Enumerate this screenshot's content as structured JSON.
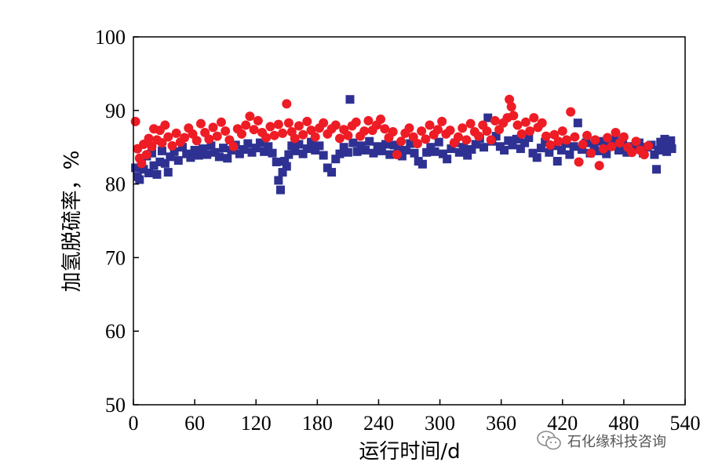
{
  "chart_data": {
    "type": "scatter",
    "xlabel": "运行时间/d",
    "ylabel": "加氢脱硫率，%",
    "xlim": [
      0,
      540
    ],
    "ylim": [
      50,
      100
    ],
    "xticks": [
      0,
      60,
      120,
      180,
      240,
      300,
      360,
      420,
      480,
      540
    ],
    "yticks": [
      50,
      60,
      70,
      80,
      90,
      100
    ],
    "grid": false,
    "legend": "none",
    "series": [
      {
        "marker": "square",
        "color": "#2e3192",
        "points": [
          [
            2,
            82.2
          ],
          [
            4,
            81.0
          ],
          [
            6,
            80.6
          ],
          [
            8,
            83.5
          ],
          [
            10,
            82.0
          ],
          [
            13,
            83.8
          ],
          [
            15,
            81.5
          ],
          [
            18,
            84.2
          ],
          [
            20,
            82.5
          ],
          [
            23,
            81.3
          ],
          [
            26,
            83.0
          ],
          [
            28,
            84.5
          ],
          [
            31,
            82.8
          ],
          [
            34,
            81.6
          ],
          [
            36,
            83.7
          ],
          [
            40,
            84.4
          ],
          [
            44,
            83.2
          ],
          [
            48,
            85.0
          ],
          [
            52,
            84.1
          ],
          [
            56,
            83.6
          ],
          [
            60,
            84.6
          ],
          [
            64,
            83.9
          ],
          [
            68,
            84.8
          ],
          [
            72,
            84.0
          ],
          [
            76,
            85.2
          ],
          [
            80,
            84.3
          ],
          [
            84,
            83.7
          ],
          [
            88,
            84.9
          ],
          [
            92,
            83.5
          ],
          [
            96,
            84.6
          ],
          [
            100,
            85.3
          ],
          [
            104,
            84.1
          ],
          [
            108,
            84.7
          ],
          [
            112,
            85.5
          ],
          [
            116,
            84.3
          ],
          [
            120,
            84.9
          ],
          [
            124,
            85.6
          ],
          [
            128,
            84.4
          ],
          [
            132,
            85.1
          ],
          [
            136,
            84.2
          ],
          [
            140,
            83.0
          ],
          [
            142,
            80.5
          ],
          [
            144,
            79.2
          ],
          [
            146,
            81.6
          ],
          [
            148,
            83.1
          ],
          [
            150,
            82.4
          ],
          [
            152,
            84.0
          ],
          [
            155,
            85.2
          ],
          [
            158,
            84.5
          ],
          [
            162,
            85.4
          ],
          [
            166,
            84.1
          ],
          [
            170,
            84.8
          ],
          [
            174,
            85.7
          ],
          [
            178,
            84.6
          ],
          [
            182,
            85.2
          ],
          [
            186,
            83.9
          ],
          [
            190,
            82.2
          ],
          [
            194,
            81.6
          ],
          [
            198,
            83.4
          ],
          [
            202,
            84.1
          ],
          [
            206,
            85.0
          ],
          [
            210,
            84.3
          ],
          [
            212,
            91.5
          ],
          [
            215,
            85.6
          ],
          [
            219,
            84.4
          ],
          [
            223,
            85.2
          ],
          [
            227,
            84.6
          ],
          [
            231,
            85.8
          ],
          [
            235,
            84.2
          ],
          [
            239,
            85.1
          ],
          [
            243,
            84.5
          ],
          [
            247,
            85.4
          ],
          [
            251,
            84.0
          ],
          [
            255,
            85.3
          ],
          [
            259,
            84.7
          ],
          [
            263,
            83.8
          ],
          [
            267,
            84.6
          ],
          [
            271,
            85.5
          ],
          [
            275,
            84.2
          ],
          [
            279,
            83.1
          ],
          [
            283,
            82.7
          ],
          [
            287,
            84.3
          ],
          [
            291,
            85.0
          ],
          [
            295,
            84.4
          ],
          [
            299,
            85.7
          ],
          [
            303,
            84.1
          ],
          [
            307,
            83.4
          ],
          [
            311,
            84.8
          ],
          [
            315,
            85.6
          ],
          [
            319,
            84.3
          ],
          [
            323,
            85.0
          ],
          [
            327,
            83.9
          ],
          [
            331,
            84.7
          ],
          [
            335,
            85.4
          ],
          [
            339,
            86.2
          ],
          [
            343,
            85.0
          ],
          [
            347,
            89.0
          ],
          [
            351,
            85.8
          ],
          [
            355,
            86.5
          ],
          [
            359,
            85.1
          ],
          [
            363,
            84.6
          ],
          [
            367,
            85.9
          ],
          [
            371,
            85.3
          ],
          [
            375,
            86.1
          ],
          [
            379,
            84.8
          ],
          [
            383,
            85.6
          ],
          [
            387,
            86.3
          ],
          [
            391,
            84.2
          ],
          [
            395,
            83.6
          ],
          [
            399,
            84.9
          ],
          [
            403,
            85.7
          ],
          [
            407,
            84.3
          ],
          [
            411,
            85.2
          ],
          [
            415,
            83.1
          ],
          [
            419,
            84.6
          ],
          [
            423,
            85.5
          ],
          [
            427,
            84.0
          ],
          [
            431,
            85.1
          ],
          [
            435,
            88.3
          ],
          [
            439,
            84.7
          ],
          [
            443,
            85.6
          ],
          [
            447,
            84.2
          ],
          [
            451,
            85.3
          ],
          [
            455,
            84.5
          ],
          [
            459,
            85.8
          ],
          [
            463,
            84.1
          ],
          [
            467,
            85.2
          ],
          [
            471,
            86.0
          ],
          [
            475,
            84.6
          ],
          [
            479,
            85.4
          ],
          [
            483,
            84.3
          ],
          [
            487,
            85.1
          ],
          [
            491,
            84.8
          ],
          [
            495,
            85.6
          ],
          [
            499,
            84.2
          ],
          [
            503,
            85.0
          ],
          [
            507,
            85.3
          ],
          [
            510,
            84.0
          ],
          [
            512,
            82.0
          ],
          [
            514,
            84.6
          ],
          [
            516,
            85.7
          ],
          [
            518,
            85.2
          ],
          [
            520,
            86.1
          ],
          [
            522,
            84.4
          ],
          [
            524,
            85.3
          ],
          [
            526,
            85.9
          ],
          [
            527,
            84.8
          ]
        ]
      },
      {
        "marker": "circle",
        "color": "#ee1c25",
        "points": [
          [
            2,
            88.5
          ],
          [
            4,
            84.8
          ],
          [
            6,
            83.5
          ],
          [
            8,
            82.8
          ],
          [
            10,
            85.4
          ],
          [
            13,
            84.0
          ],
          [
            15,
            86.2
          ],
          [
            18,
            85.1
          ],
          [
            20,
            87.5
          ],
          [
            23,
            86.0
          ],
          [
            26,
            87.3
          ],
          [
            28,
            85.6
          ],
          [
            31,
            88.0
          ],
          [
            34,
            86.4
          ],
          [
            38,
            85.2
          ],
          [
            42,
            86.9
          ],
          [
            46,
            85.7
          ],
          [
            50,
            86.3
          ],
          [
            54,
            87.6
          ],
          [
            58,
            86.8
          ],
          [
            62,
            85.9
          ],
          [
            66,
            88.2
          ],
          [
            70,
            87.0
          ],
          [
            74,
            86.1
          ],
          [
            78,
            87.7
          ],
          [
            82,
            86.5
          ],
          [
            86,
            88.4
          ],
          [
            90,
            87.2
          ],
          [
            94,
            86.0
          ],
          [
            98,
            85.1
          ],
          [
            102,
            87.5
          ],
          [
            106,
            86.8
          ],
          [
            110,
            88.0
          ],
          [
            114,
            89.2
          ],
          [
            118,
            87.4
          ],
          [
            122,
            88.6
          ],
          [
            126,
            87.0
          ],
          [
            130,
            86.3
          ],
          [
            134,
            87.8
          ],
          [
            138,
            86.6
          ],
          [
            142,
            88.1
          ],
          [
            146,
            86.9
          ],
          [
            150,
            90.9
          ],
          [
            152,
            88.3
          ],
          [
            155,
            87.1
          ],
          [
            158,
            86.2
          ],
          [
            162,
            87.9
          ],
          [
            166,
            86.7
          ],
          [
            170,
            88.5
          ],
          [
            174,
            87.3
          ],
          [
            178,
            86.4
          ],
          [
            182,
            87.6
          ],
          [
            186,
            88.3
          ],
          [
            190,
            86.8
          ],
          [
            194,
            87.5
          ],
          [
            198,
            88.0
          ],
          [
            202,
            86.2
          ],
          [
            206,
            87.4
          ],
          [
            210,
            86.6
          ],
          [
            214,
            87.9
          ],
          [
            218,
            88.4
          ],
          [
            222,
            86.5
          ],
          [
            226,
            87.2
          ],
          [
            230,
            88.6
          ],
          [
            234,
            87.3
          ],
          [
            238,
            88.0
          ],
          [
            242,
            88.8
          ],
          [
            246,
            87.5
          ],
          [
            250,
            86.3
          ],
          [
            254,
            87.1
          ],
          [
            258,
            84.0
          ],
          [
            262,
            85.8
          ],
          [
            266,
            86.9
          ],
          [
            270,
            87.6
          ],
          [
            274,
            86.4
          ],
          [
            278,
            85.5
          ],
          [
            282,
            87.2
          ],
          [
            286,
            86.1
          ],
          [
            290,
            88.0
          ],
          [
            294,
            86.7
          ],
          [
            298,
            87.4
          ],
          [
            302,
            88.5
          ],
          [
            306,
            86.8
          ],
          [
            310,
            87.3
          ],
          [
            314,
            85.6
          ],
          [
            318,
            86.4
          ],
          [
            322,
            87.6
          ],
          [
            326,
            86.0
          ],
          [
            330,
            88.2
          ],
          [
            334,
            87.1
          ],
          [
            338,
            86.5
          ],
          [
            342,
            88.0
          ],
          [
            346,
            87.2
          ],
          [
            350,
            86.0
          ],
          [
            354,
            88.6
          ],
          [
            358,
            87.4
          ],
          [
            362,
            88.3
          ],
          [
            366,
            89.0
          ],
          [
            368,
            91.5
          ],
          [
            370,
            90.5
          ],
          [
            372,
            89.3
          ],
          [
            376,
            88.0
          ],
          [
            380,
            86.8
          ],
          [
            384,
            88.4
          ],
          [
            388,
            87.2
          ],
          [
            392,
            89.0
          ],
          [
            396,
            87.7
          ],
          [
            400,
            88.3
          ],
          [
            404,
            86.5
          ],
          [
            408,
            85.3
          ],
          [
            412,
            86.7
          ],
          [
            416,
            85.8
          ],
          [
            420,
            87.2
          ],
          [
            424,
            86.0
          ],
          [
            428,
            89.8
          ],
          [
            432,
            86.4
          ],
          [
            436,
            83.0
          ],
          [
            440,
            85.4
          ],
          [
            444,
            86.6
          ],
          [
            448,
            84.2
          ],
          [
            452,
            86.0
          ],
          [
            456,
            82.5
          ],
          [
            460,
            84.8
          ],
          [
            464,
            86.3
          ],
          [
            468,
            85.1
          ],
          [
            472,
            87.0
          ],
          [
            476,
            85.6
          ],
          [
            480,
            86.4
          ],
          [
            484,
            85.0
          ],
          [
            488,
            84.3
          ],
          [
            492,
            85.8
          ],
          [
            496,
            84.6
          ],
          [
            500,
            84.0
          ],
          [
            504,
            85.2
          ]
        ]
      }
    ]
  },
  "watermark": {
    "icon": "wechat-icon",
    "text": "石化缘科技咨询"
  }
}
